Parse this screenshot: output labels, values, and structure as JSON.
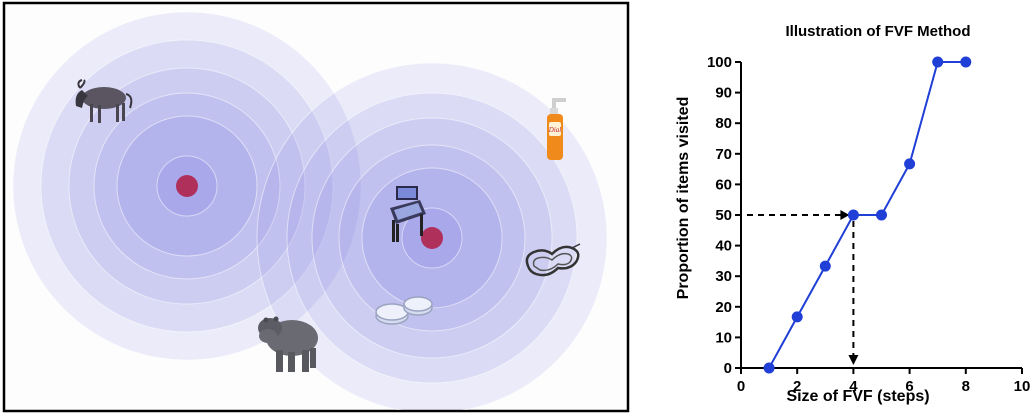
{
  "illustration": {
    "items": [
      {
        "name": "wildebeest",
        "icon": "wildebeest-icon"
      },
      {
        "name": "soap-bottle",
        "icon": "soap-bottle-icon",
        "label": "Dial"
      },
      {
        "name": "pinball-machine",
        "icon": "pinball-machine-icon"
      },
      {
        "name": "race-track",
        "icon": "race-track-icon"
      },
      {
        "name": "petri-dishes",
        "icon": "petri-dishes-icon"
      },
      {
        "name": "hippo",
        "icon": "hippo-icon"
      }
    ],
    "colors": {
      "ring": "#6b6be0",
      "focus": "#b0305c",
      "frame": "#000000"
    }
  },
  "chart_data": {
    "type": "line",
    "title": "Illustration of FVF Method",
    "xlabel": "Size of FVF (steps)",
    "ylabel": "Proportion of items visited",
    "xlim": [
      0,
      10
    ],
    "ylim": [
      0,
      100
    ],
    "xticks": [
      0,
      2,
      4,
      6,
      8,
      10
    ],
    "yticks": [
      0,
      10,
      20,
      30,
      40,
      50,
      60,
      70,
      80,
      90,
      100
    ],
    "series": [
      {
        "x": [
          1,
          2,
          3,
          4,
          5,
          6,
          7,
          8
        ],
        "y": [
          0,
          16.7,
          33.3,
          50,
          50,
          66.7,
          100,
          100
        ],
        "color": "#1f3fd6"
      }
    ],
    "annotation": {
      "x": 4,
      "y": 50,
      "style": "dashed-arrows"
    },
    "grid": false
  }
}
